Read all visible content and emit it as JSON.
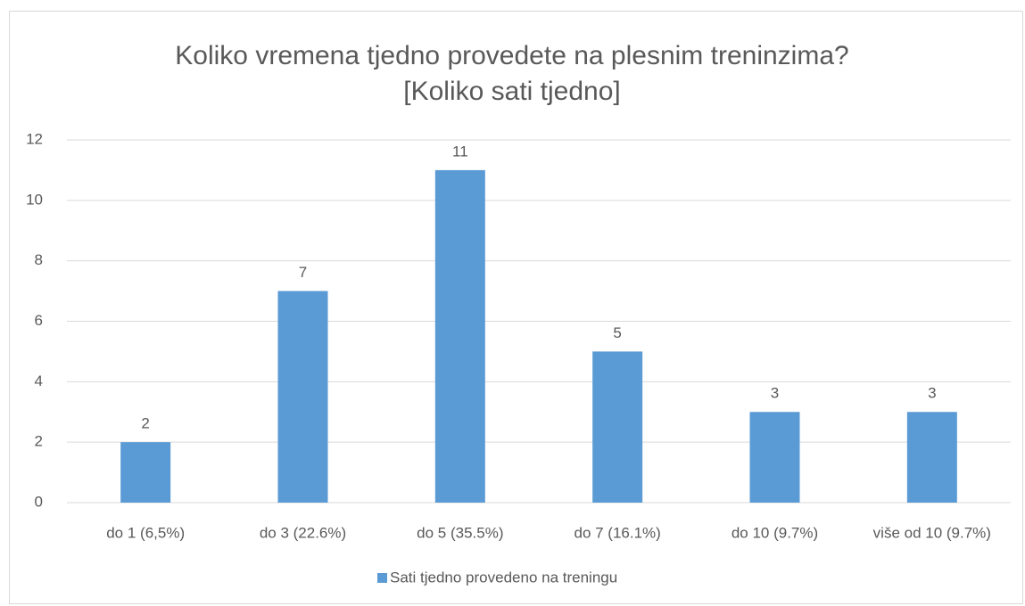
{
  "chart_data": {
    "type": "bar",
    "title": "Koliko vremena tjedno provedete na plesnim treninzima?",
    "subtitle": "[Koliko sati tjedno]",
    "categories": [
      "do 1 (6,5%)",
      "do 3 (22.6%)",
      "do 5 (35.5%)",
      "do 7 (16.1%)",
      "do 10 (9.7%)",
      "više od 10 (9.7%)"
    ],
    "series": [
      {
        "name": "Sati tjedno provedeno na treningu",
        "color": "#5b9bd5",
        "values": [
          2,
          7,
          11,
          5,
          3,
          3
        ]
      }
    ],
    "ylim": [
      0,
      12
    ],
    "yticks": [
      0,
      2,
      4,
      6,
      8,
      10,
      12
    ],
    "grid": true,
    "legend": "bottom"
  }
}
